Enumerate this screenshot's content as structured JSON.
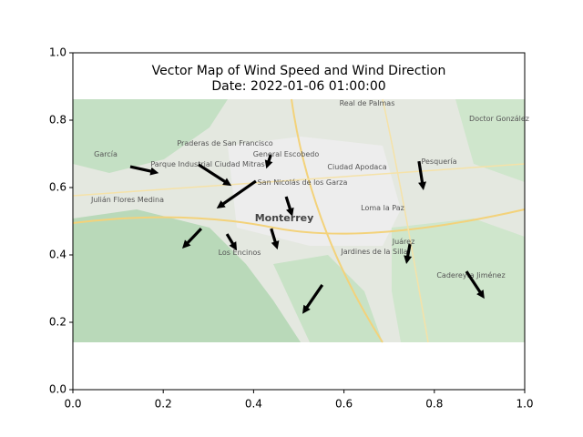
{
  "chart_data": {
    "type": "quiver",
    "title": "Vector Map of Wind Speed and Wind Direction",
    "subtitle": "Date: 2022-01-06 01:00:00",
    "xlim": [
      0,
      1
    ],
    "ylim": [
      0,
      1
    ],
    "xticks": [
      {
        "value": 0,
        "label": "0.0"
      },
      {
        "value": 0.2,
        "label": "0.2"
      },
      {
        "value": 0.4,
        "label": "0.4"
      },
      {
        "value": 0.6,
        "label": "0.6"
      },
      {
        "value": 0.8,
        "label": "0.8"
      },
      {
        "value": 1,
        "label": "1.0"
      }
    ],
    "yticks": [
      {
        "value": 0,
        "label": "0.0"
      },
      {
        "value": 0.2,
        "label": "0.2"
      },
      {
        "value": 0.4,
        "label": "0.4"
      },
      {
        "value": 0.6,
        "label": "0.6"
      },
      {
        "value": 0.8,
        "label": "0.8"
      },
      {
        "value": 1,
        "label": "1.0"
      }
    ],
    "color": "#000000",
    "x": [
      0.127,
      0.278,
      0.405,
      0.438,
      0.472,
      0.284,
      0.341,
      0.439,
      0.766,
      0.746,
      0.871,
      0.552
    ],
    "y": [
      0.662,
      0.668,
      0.619,
      0.697,
      0.573,
      0.478,
      0.462,
      0.478,
      0.678,
      0.432,
      0.351,
      0.311
    ],
    "u": [
      0.063,
      0.073,
      -0.087,
      -0.01,
      0.014,
      -0.042,
      0.022,
      0.014,
      0.01,
      -0.008,
      0.04,
      -0.044
    ],
    "v": [
      -0.019,
      -0.063,
      -0.081,
      -0.041,
      -0.059,
      -0.059,
      -0.049,
      -0.062,
      -0.086,
      -0.059,
      -0.081,
      -0.086
    ],
    "map_labels": [
      "Monterrey",
      "San Nicolás de los Garza",
      "Ciudad Apodaca",
      "General Escobedo",
      "Juárez",
      "Los Encinos",
      "Pesquería",
      "Cadereyta Jiménez",
      "Julián Flores Medina",
      "Loma la Paz",
      "Jardines de la Silla",
      "Parque Industrial Ciudad Mitras",
      "Praderas de San Francisco",
      "Real de Palmas",
      "Doctor González",
      "García"
    ]
  }
}
